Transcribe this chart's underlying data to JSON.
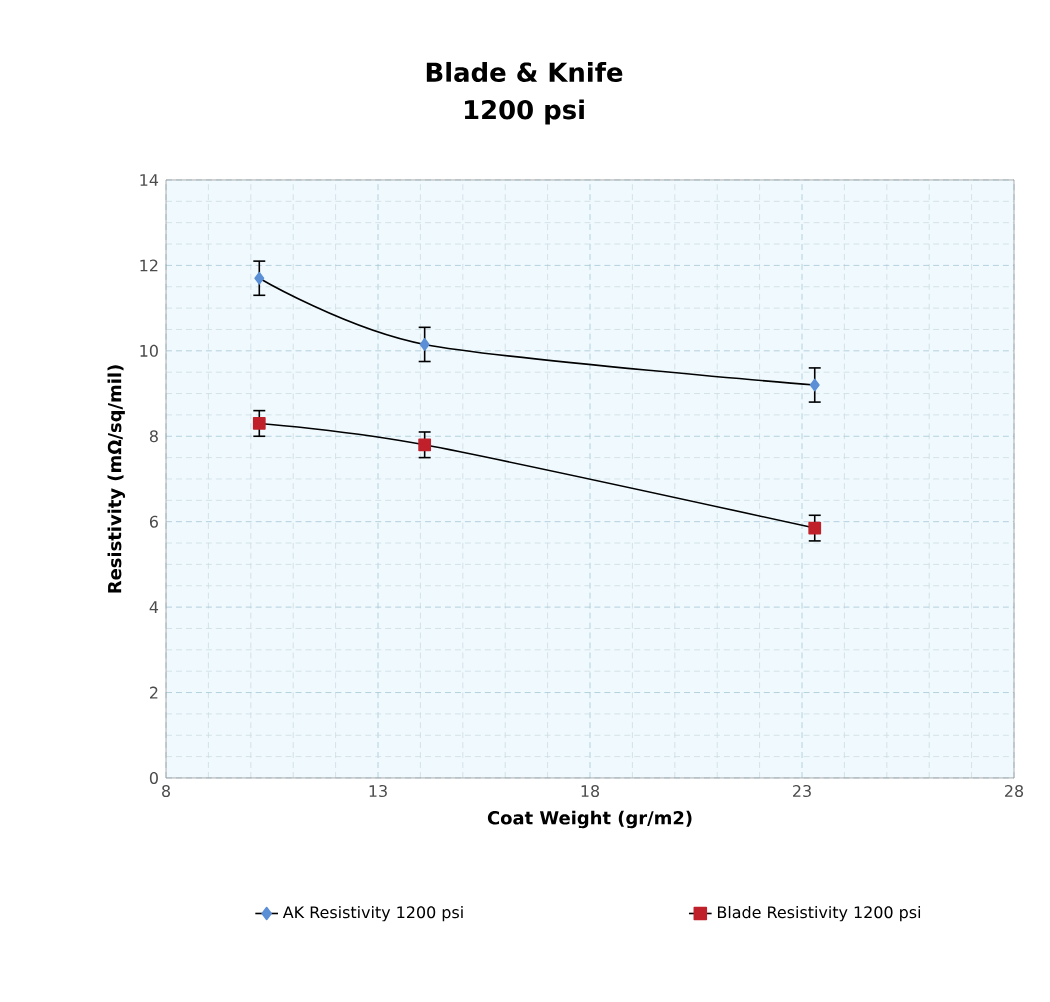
{
  "chart_data": {
    "type": "line",
    "title": "Blade & Knife",
    "subtitle": "1200 psi",
    "xlabel": "Coat Weight (gr/m2)",
    "ylabel": "Resistivity (mΩ/sq/mil)",
    "xlim": [
      8,
      28
    ],
    "xticks": [
      8,
      13,
      18,
      23,
      28
    ],
    "ylim": [
      0,
      14
    ],
    "yticks": [
      0,
      2,
      4,
      6,
      8,
      10,
      12,
      14
    ],
    "grid": true,
    "legend": "bottom",
    "line_style": "solid",
    "series": [
      {
        "name": "AK Resistivity 1200 psi",
        "color": "#5b8fd6",
        "marker": "diamond",
        "x": [
          10.2,
          14.1,
          23.3
        ],
        "values": [
          11.7,
          10.15,
          9.2
        ],
        "errors": [
          0.4,
          0.4,
          0.4
        ]
      },
      {
        "name": "Blade Resistivity 1200 psi",
        "color": "#c0202a",
        "marker": "square",
        "x": [
          10.2,
          14.1,
          23.3
        ],
        "values": [
          8.3,
          7.8,
          5.85
        ],
        "errors": [
          0.3,
          0.3,
          0.3
        ]
      }
    ]
  }
}
